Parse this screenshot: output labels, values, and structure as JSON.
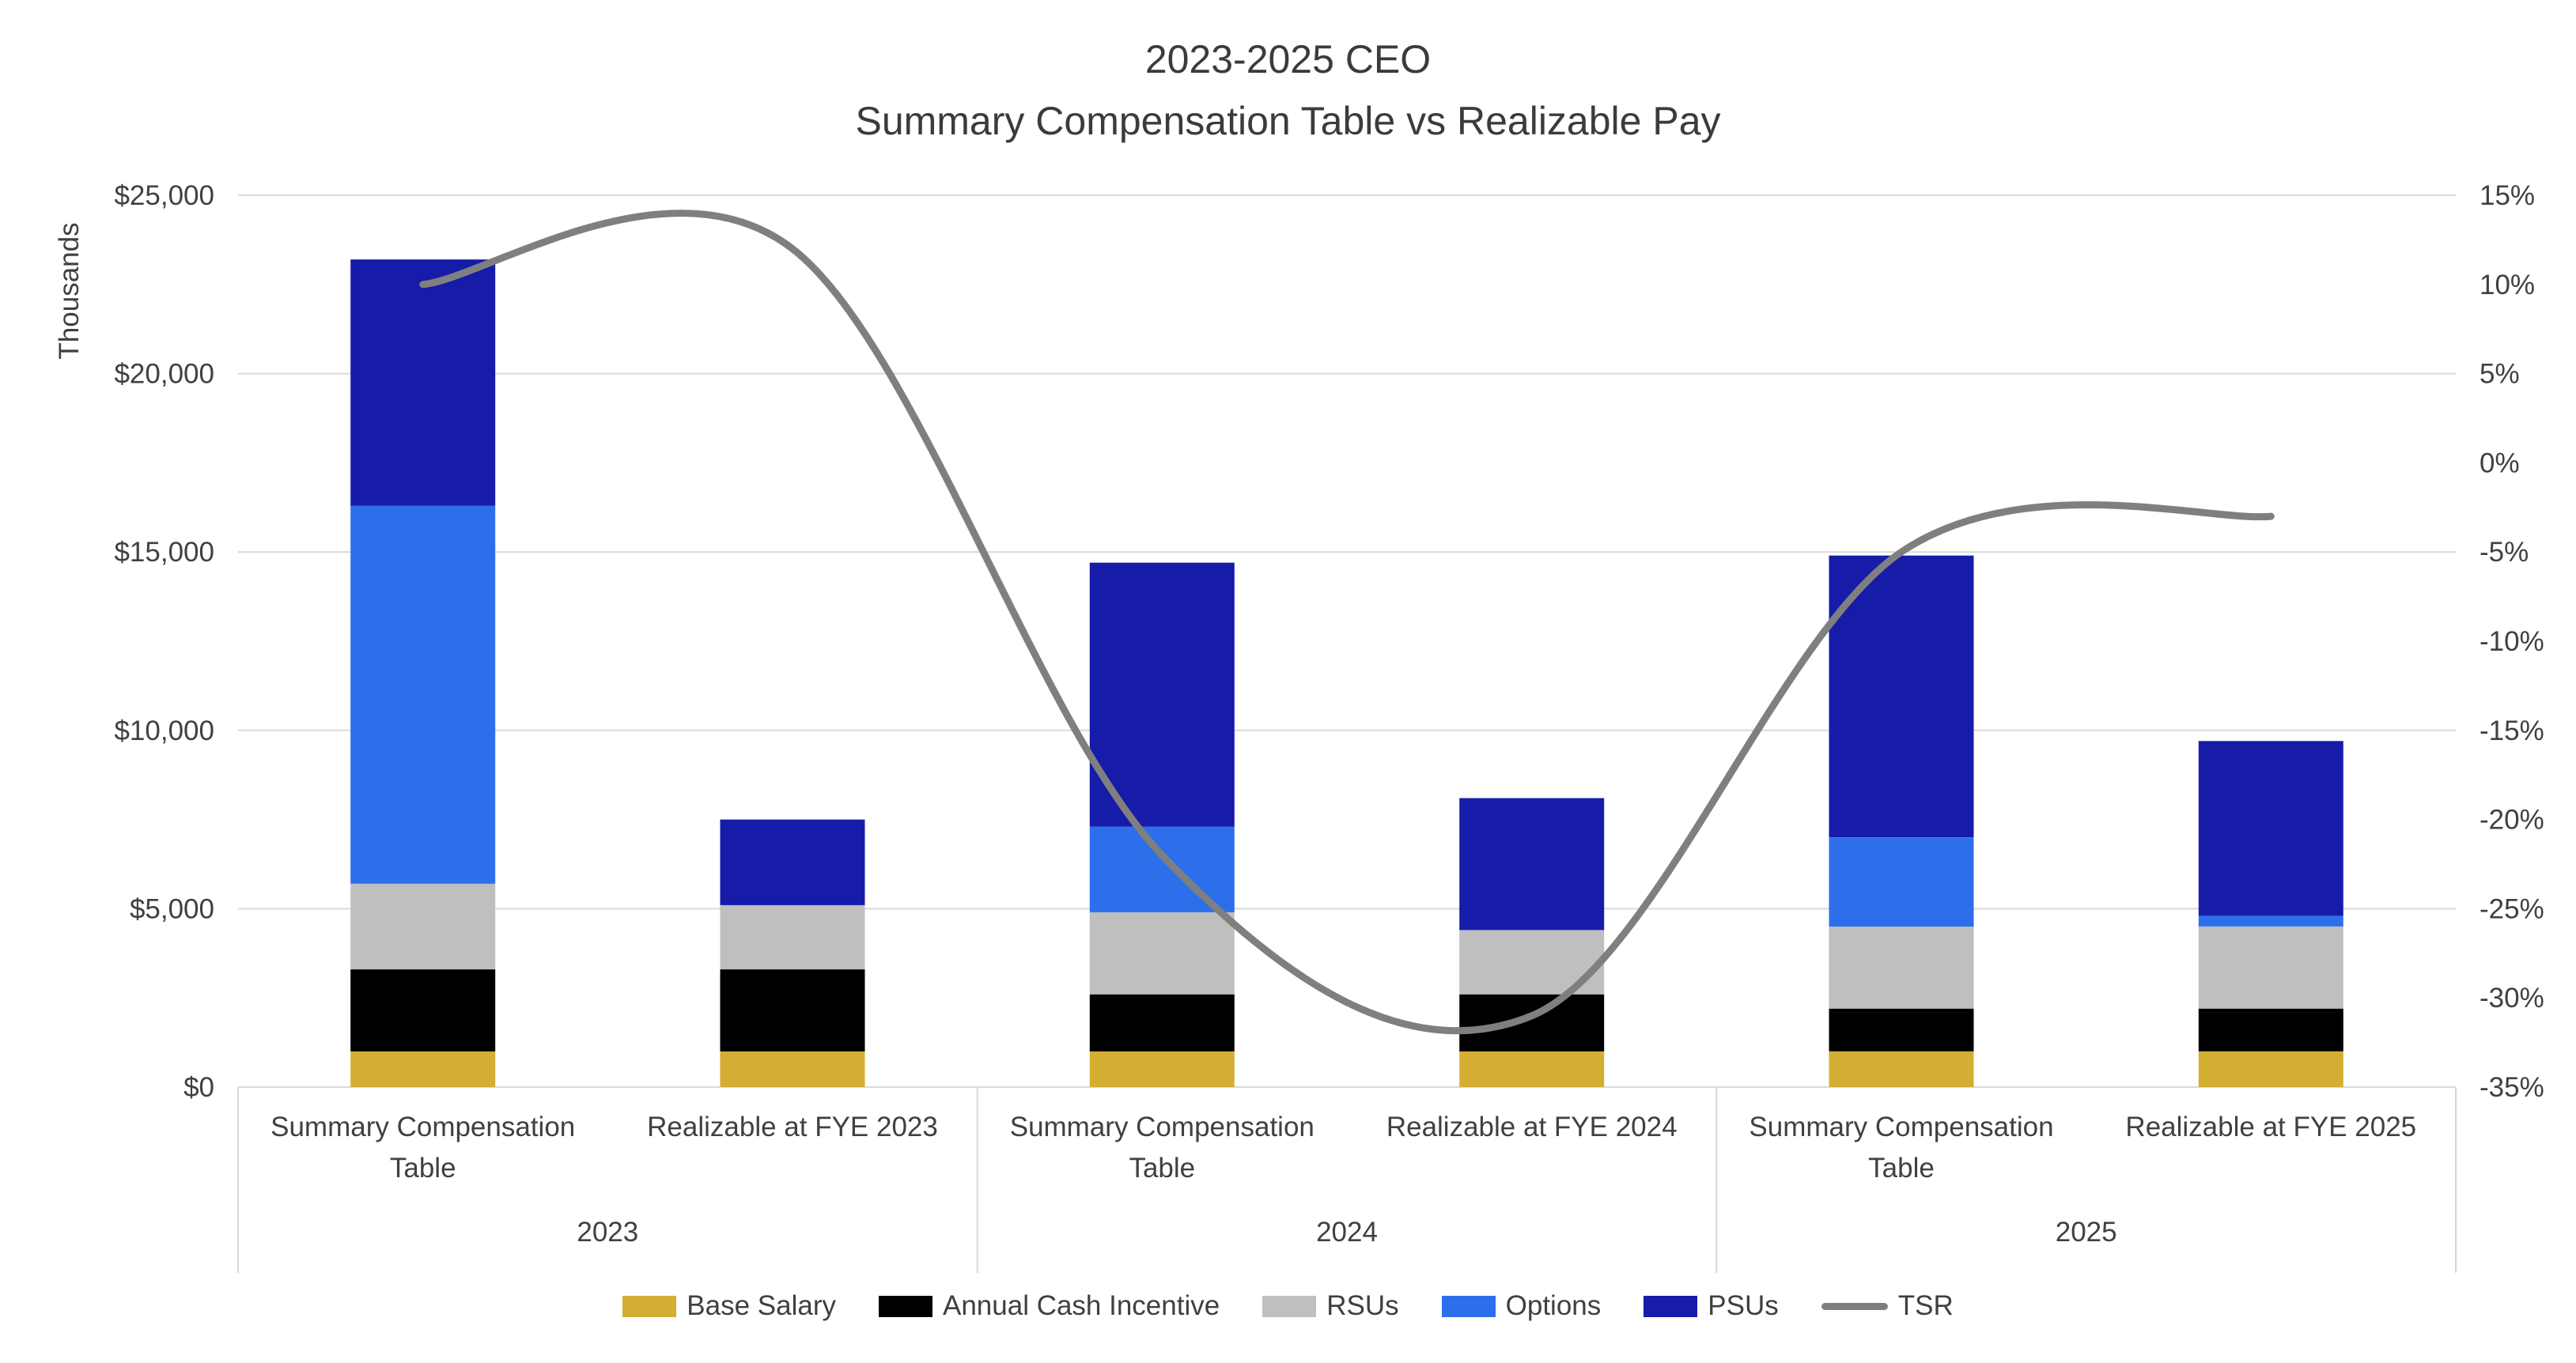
{
  "title": {
    "line1": "2023-2025 CEO",
    "line2": "Summary Compensation Table vs Realizable Pay"
  },
  "chart_data": {
    "type": "bar",
    "subtype": "stacked-column-with-line-overlay",
    "title": "2023-2025 CEO Summary Compensation Table vs Realizable Pay",
    "categories": [
      "Summary Compensation\nTable",
      "Realizable at FYE 2023",
      "Summary Compensation\nTable",
      "Realizable at FYE 2024",
      "Summary Compensation\nTable",
      "Realizable at FYE 2025"
    ],
    "group_labels": [
      "2023",
      "2024",
      "2025"
    ],
    "series": [
      {
        "name": "Base Salary",
        "color": "#D4AE33",
        "values": [
          1000,
          1000,
          1000,
          1000,
          1000,
          1000
        ]
      },
      {
        "name": "Annual Cash Incentive",
        "color": "#000000",
        "values": [
          2300,
          2300,
          1600,
          1600,
          1200,
          1200
        ]
      },
      {
        "name": "RSUs",
        "color": "#BFBFBF",
        "values": [
          2400,
          1800,
          2300,
          1800,
          2300,
          2300
        ]
      },
      {
        "name": "Options",
        "color": "#2D6EEB",
        "values": [
          10600,
          0,
          2400,
          0,
          2500,
          300
        ]
      },
      {
        "name": "PSUs",
        "color": "#161CA8",
        "values": [
          6900,
          2400,
          7400,
          3700,
          7900,
          4900
        ]
      }
    ],
    "bar_totals": [
      23200,
      7500,
      14700,
      8100,
      14900,
      9700
    ],
    "line_series": {
      "name": "TSR",
      "color": "#7F7F7F",
      "axis": "right",
      "unit": "%",
      "values": [
        10,
        12,
        -22,
        -31,
        -5,
        -3
      ]
    },
    "left_axis": {
      "title": "Thousands",
      "min": 0,
      "max": 25000,
      "ticks": [
        0,
        5000,
        10000,
        15000,
        20000,
        25000
      ],
      "labels": [
        "$0",
        "$5,000",
        "$10,000",
        "$15,000",
        "$20,000",
        "$25,000"
      ]
    },
    "right_axis": {
      "min": -35,
      "max": 15,
      "ticks": [
        15,
        10,
        5,
        0,
        -5,
        -10,
        -15,
        -20,
        -25,
        -30,
        -35
      ],
      "labels": [
        "15%",
        "10%",
        "5%",
        "0%",
        "-5%",
        "-10%",
        "-15%",
        "-20%",
        "-25%",
        "-30%",
        "-35%"
      ]
    },
    "grid": true,
    "legend_position": "bottom",
    "gridline_color": "#D9D9D9",
    "text_color": "#404040"
  }
}
